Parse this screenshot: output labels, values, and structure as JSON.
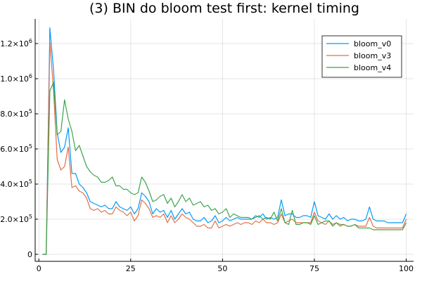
{
  "chart_data": {
    "type": "line",
    "title": "(3) BIN do bloom test first: kernel timing",
    "xlabel": "",
    "ylabel": "",
    "xlim": [
      -1,
      102
    ],
    "ylim": [
      -40000,
      1340000
    ],
    "grid": true,
    "legend_position": "top-right",
    "x_ticks": [
      {
        "value": 0,
        "label": "0"
      },
      {
        "value": 25,
        "label": "25"
      },
      {
        "value": 50,
        "label": "50"
      },
      {
        "value": 75,
        "label": "75"
      },
      {
        "value": 100,
        "label": "100"
      }
    ],
    "y_ticks": [
      {
        "value": 0,
        "label": "0",
        "exp": ""
      },
      {
        "value": 200000,
        "label": "2.0×10",
        "exp": "5"
      },
      {
        "value": 400000,
        "label": "4.0×10",
        "exp": "5"
      },
      {
        "value": 600000,
        "label": "6.0×10",
        "exp": "5"
      },
      {
        "value": 800000,
        "label": "8.0×10",
        "exp": "5"
      },
      {
        "value": 1000000,
        "label": "1.0×10",
        "exp": "6"
      },
      {
        "value": 1200000,
        "label": "1.2×10",
        "exp": "6"
      }
    ],
    "x": [
      1,
      2,
      3,
      4,
      5,
      6,
      7,
      8,
      9,
      10,
      11,
      12,
      13,
      14,
      15,
      16,
      17,
      18,
      19,
      20,
      21,
      22,
      23,
      24,
      25,
      26,
      27,
      28,
      29,
      30,
      31,
      32,
      33,
      34,
      35,
      36,
      37,
      38,
      39,
      40,
      41,
      42,
      43,
      44,
      45,
      46,
      47,
      48,
      49,
      50,
      51,
      52,
      53,
      54,
      55,
      56,
      57,
      58,
      59,
      60,
      61,
      62,
      63,
      64,
      65,
      66,
      67,
      68,
      69,
      70,
      71,
      72,
      73,
      74,
      75,
      76,
      77,
      78,
      79,
      80,
      81,
      82,
      83,
      84,
      85,
      86,
      87,
      88,
      89,
      90,
      91,
      92,
      93,
      94,
      95,
      96,
      97,
      98,
      99,
      100
    ],
    "series": [
      {
        "name": "bloom_v0",
        "color": "#009af9",
        "values": [
          0,
          0,
          1290000,
          1050000,
          690000,
          580000,
          610000,
          720000,
          460000,
          460000,
          400000,
          380000,
          350000,
          300000,
          290000,
          280000,
          270000,
          280000,
          260000,
          260000,
          300000,
          270000,
          260000,
          250000,
          270000,
          230000,
          260000,
          350000,
          330000,
          300000,
          230000,
          260000,
          240000,
          250000,
          210000,
          250000,
          200000,
          230000,
          260000,
          230000,
          240000,
          200000,
          190000,
          190000,
          210000,
          180000,
          190000,
          220000,
          180000,
          190000,
          210000,
          190000,
          200000,
          210000,
          200000,
          200000,
          200000,
          200000,
          220000,
          210000,
          230000,
          200000,
          210000,
          200000,
          210000,
          310000,
          220000,
          230000,
          230000,
          210000,
          210000,
          220000,
          220000,
          210000,
          300000,
          220000,
          210000,
          200000,
          230000,
          200000,
          220000,
          200000,
          210000,
          190000,
          200000,
          200000,
          190000,
          190000,
          200000,
          270000,
          200000,
          190000,
          190000,
          190000,
          180000,
          180000,
          180000,
          180000,
          180000,
          230000
        ]
      },
      {
        "name": "bloom_v3",
        "color": "#e26f46",
        "values": [
          0,
          0,
          1210000,
          930000,
          540000,
          480000,
          500000,
          610000,
          380000,
          390000,
          360000,
          350000,
          320000,
          260000,
          250000,
          260000,
          240000,
          250000,
          230000,
          230000,
          270000,
          250000,
          240000,
          220000,
          240000,
          190000,
          220000,
          310000,
          290000,
          260000,
          210000,
          220000,
          210000,
          230000,
          180000,
          220000,
          180000,
          200000,
          230000,
          210000,
          200000,
          180000,
          160000,
          160000,
          170000,
          150000,
          150000,
          190000,
          150000,
          160000,
          170000,
          160000,
          170000,
          180000,
          170000,
          180000,
          180000,
          170000,
          190000,
          180000,
          200000,
          180000,
          180000,
          170000,
          180000,
          230000,
          180000,
          190000,
          200000,
          180000,
          180000,
          180000,
          180000,
          180000,
          240000,
          190000,
          180000,
          170000,
          190000,
          170000,
          180000,
          170000,
          170000,
          160000,
          160000,
          170000,
          160000,
          160000,
          160000,
          210000,
          160000,
          150000,
          150000,
          150000,
          150000,
          150000,
          150000,
          150000,
          150000,
          200000
        ]
      },
      {
        "name": "bloom_v4",
        "color": "#3da44d",
        "values": [
          0,
          0,
          930000,
          980000,
          680000,
          700000,
          880000,
          770000,
          700000,
          590000,
          620000,
          560000,
          500000,
          470000,
          450000,
          440000,
          410000,
          410000,
          420000,
          440000,
          390000,
          390000,
          370000,
          370000,
          350000,
          340000,
          350000,
          440000,
          410000,
          360000,
          300000,
          310000,
          330000,
          340000,
          290000,
          320000,
          270000,
          300000,
          340000,
          300000,
          320000,
          280000,
          290000,
          300000,
          270000,
          280000,
          250000,
          260000,
          230000,
          240000,
          260000,
          210000,
          230000,
          220000,
          210000,
          210000,
          210000,
          200000,
          210000,
          220000,
          200000,
          210000,
          200000,
          240000,
          190000,
          260000,
          180000,
          170000,
          250000,
          170000,
          170000,
          180000,
          180000,
          170000,
          220000,
          170000,
          180000,
          190000,
          190000,
          160000,
          180000,
          160000,
          170000,
          160000,
          160000,
          170000,
          150000,
          150000,
          150000,
          150000,
          140000,
          140000,
          140000,
          140000,
          140000,
          140000,
          140000,
          140000,
          140000,
          180000
        ]
      }
    ]
  }
}
